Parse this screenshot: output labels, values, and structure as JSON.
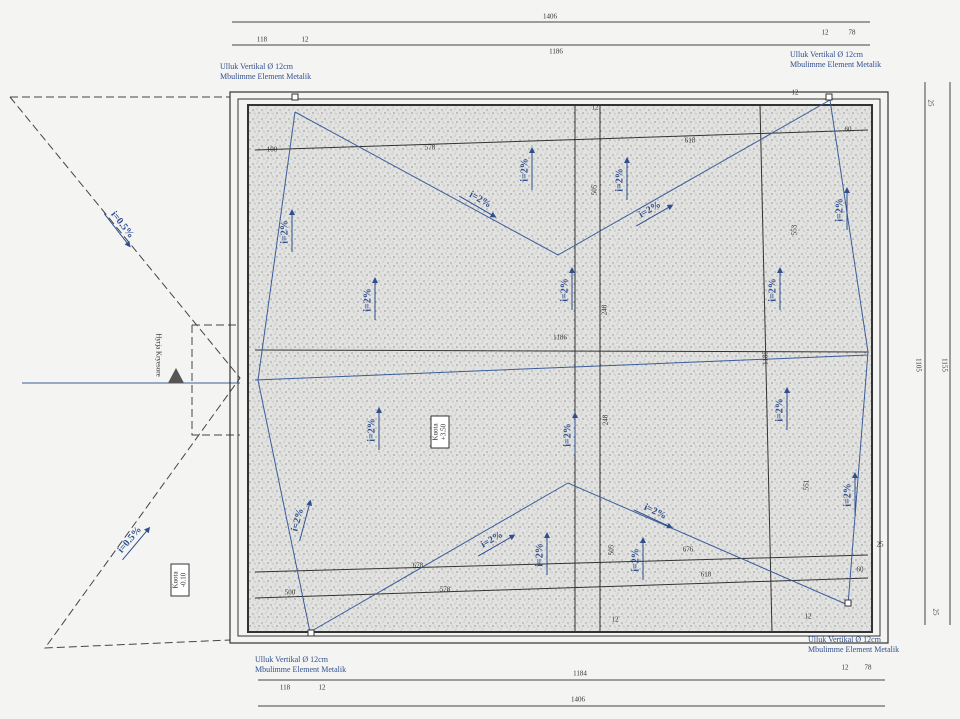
{
  "entrance": "Hyrja Kryesore",
  "drain_labels": [
    {
      "line1": "Ulluk Vertikal Ø 12cm",
      "line2": "Mbulimme Element Metalik"
    },
    {
      "line1": "Ulluk Vertikal Ø 12cm",
      "line2": "Mbulimme Element Metalik"
    },
    {
      "line1": "Ulluk Vertikal Ø 12cm",
      "line2": "Mbulimme Element Metalik"
    },
    {
      "line1": "Ulluk Vertikal Ø 12cm",
      "line2": "Mbulimme Element Metalik"
    }
  ],
  "levels": [
    {
      "label": "Kuota",
      "value": "+3.50"
    },
    {
      "label": "Kuota",
      "value": "-0.10"
    }
  ],
  "slopes": [
    "i=0.5%",
    "i=0.5%",
    "i=2%",
    "i=2%",
    "i=2%",
    "i=2%",
    "i=2%",
    "i=2%",
    "i=2%",
    "i=2%",
    "i=2%",
    "i=2%",
    "i=2%",
    "i=2%",
    "i=2%",
    "i=2%",
    "i=2%",
    "i=2%",
    "i=2%",
    "i=2%"
  ],
  "dimensions": [
    1406,
    118,
    12,
    1186,
    12,
    78,
    1184,
    118,
    12,
    1406,
    12,
    78,
    1105,
    1155,
    25,
    25,
    100,
    578,
    618,
    60,
    505,
    553,
    248,
    1186,
    1185,
    248,
    505,
    551,
    500,
    578,
    618,
    60,
    678,
    676,
    25,
    12,
    12,
    12,
    12
  ]
}
